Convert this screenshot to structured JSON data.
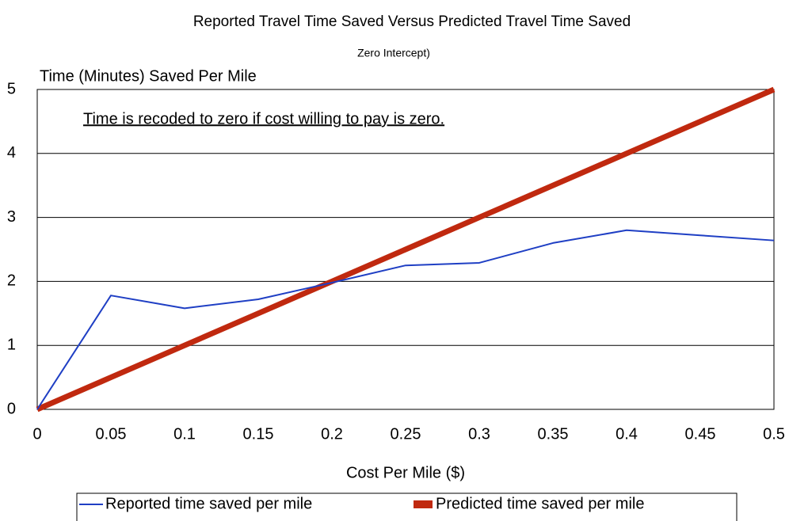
{
  "chart_data": {
    "type": "line",
    "title": "Reported Travel Time Saved Versus Predicted Travel Time Saved",
    "subtitle": "Zero Intercept)",
    "y_label": "Time (Minutes) Saved Per Mile",
    "x_label": "Cost Per Mile ($)",
    "annotation": "Time is recoded to zero if cost willing to pay is zero.",
    "x": [
      0,
      0.05,
      0.1,
      0.15,
      0.2,
      0.25,
      0.3,
      0.35,
      0.4,
      0.45,
      0.5
    ],
    "series": [
      {
        "name": "Reported time saved per mile",
        "color": "#1f3fc4",
        "values": [
          0,
          1.78,
          1.58,
          1.72,
          1.98,
          2.25,
          2.29,
          2.6,
          2.8,
          2.72,
          2.64
        ]
      },
      {
        "name": "Predicted time saved per mile",
        "color": "#c0290f",
        "values": [
          0,
          0.5,
          1,
          1.5,
          2,
          2.5,
          3,
          3.5,
          4,
          4.5,
          5
        ]
      }
    ],
    "xlim": [
      0,
      0.5
    ],
    "xticks": [
      0,
      0.05,
      0.1,
      0.15,
      0.2,
      0.25,
      0.3,
      0.35,
      0.4,
      0.45,
      0.5
    ],
    "ylim": [
      0,
      5
    ],
    "yticks": [
      0,
      1,
      2,
      3,
      4,
      5
    ],
    "grid": true,
    "legend": "bottom"
  }
}
